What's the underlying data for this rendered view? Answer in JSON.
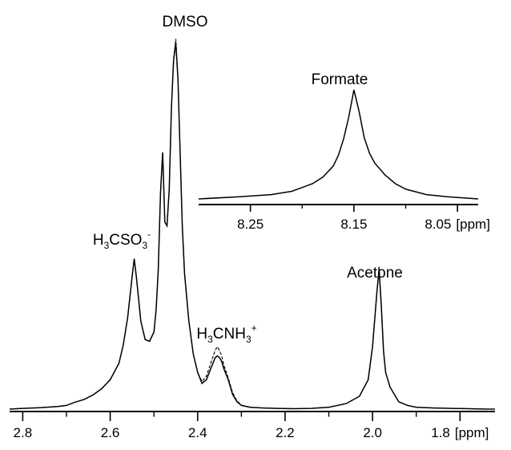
{
  "chart_data": [
    {
      "type": "line",
      "axis_unit": "[ppm]",
      "x_axis": {
        "reversed": true,
        "range": [
          2.83,
          1.72
        ],
        "ticks": [
          2.8,
          2.6,
          2.4,
          2.2,
          2.0,
          1.8
        ],
        "tick_labels": [
          "2.8",
          "2.6",
          "2.4",
          "2.2",
          "2.0",
          "1.8"
        ]
      },
      "grid": false,
      "series": [
        {
          "style": "solid",
          "x": [
            2.83,
            2.8,
            2.76,
            2.72,
            2.7,
            2.68,
            2.66,
            2.64,
            2.62,
            2.6,
            2.58,
            2.57,
            2.56,
            2.55,
            2.545,
            2.54,
            2.535,
            2.53,
            2.52,
            2.51,
            2.5,
            2.495,
            2.49,
            2.485,
            2.48,
            2.475,
            2.47,
            2.465,
            2.46,
            2.455,
            2.45,
            2.445,
            2.44,
            2.435,
            2.43,
            2.42,
            2.41,
            2.4,
            2.39,
            2.38,
            2.37,
            2.36,
            2.355,
            2.35,
            2.345,
            2.34,
            2.33,
            2.32,
            2.31,
            2.3,
            2.28,
            2.25,
            2.22,
            2.18,
            2.14,
            2.1,
            2.06,
            2.03,
            2.01,
            2.0,
            1.99,
            1.985,
            1.98,
            1.975,
            1.97,
            1.965,
            1.96,
            1.95,
            1.94,
            1.92,
            1.9,
            1.86,
            1.82,
            1.78,
            1.74,
            1.72
          ],
          "y": [
            0.0,
            0.002,
            0.004,
            0.007,
            0.01,
            0.019,
            0.026,
            0.038,
            0.055,
            0.08,
            0.125,
            0.175,
            0.25,
            0.36,
            0.41,
            0.36,
            0.3,
            0.24,
            0.19,
            0.185,
            0.21,
            0.27,
            0.38,
            0.59,
            0.7,
            0.51,
            0.5,
            0.6,
            0.82,
            0.95,
            1.0,
            0.9,
            0.7,
            0.5,
            0.37,
            0.24,
            0.15,
            0.1,
            0.07,
            0.08,
            0.11,
            0.14,
            0.145,
            0.14,
            0.13,
            0.11,
            0.08,
            0.04,
            0.02,
            0.01,
            0.005,
            0.003,
            0.002,
            0.001,
            0.002,
            0.005,
            0.015,
            0.035,
            0.08,
            0.17,
            0.32,
            0.38,
            0.28,
            0.16,
            0.1,
            0.08,
            0.06,
            0.04,
            0.02,
            0.01,
            0.005,
            0.003,
            0.002,
            0.001,
            0.0,
            0.0
          ]
        },
        {
          "style": "dashed",
          "x": [
            2.83,
            2.8,
            2.76,
            2.72,
            2.7,
            2.68,
            2.66,
            2.64,
            2.62,
            2.6,
            2.58,
            2.57,
            2.56,
            2.55,
            2.545,
            2.54,
            2.535,
            2.53,
            2.52,
            2.51,
            2.5,
            2.495,
            2.49,
            2.485,
            2.48,
            2.475,
            2.47,
            2.465,
            2.46,
            2.455,
            2.45,
            2.445,
            2.44,
            2.435,
            2.43,
            2.42,
            2.41,
            2.4,
            2.39,
            2.38,
            2.37,
            2.36,
            2.355,
            2.35,
            2.345,
            2.34,
            2.33,
            2.32,
            2.31,
            2.3,
            2.28,
            2.25,
            2.22,
            2.18,
            2.14,
            2.1,
            2.06,
            2.03,
            2.01,
            2.0,
            1.99,
            1.985,
            1.98,
            1.975,
            1.97,
            1.965,
            1.96,
            1.95,
            1.94,
            1.92,
            1.9,
            1.86,
            1.82,
            1.78,
            1.74,
            1.72
          ],
          "y": [
            0.0,
            0.002,
            0.004,
            0.007,
            0.01,
            0.019,
            0.026,
            0.038,
            0.055,
            0.08,
            0.125,
            0.175,
            0.25,
            0.36,
            0.41,
            0.36,
            0.3,
            0.24,
            0.19,
            0.185,
            0.21,
            0.27,
            0.38,
            0.59,
            0.7,
            0.51,
            0.5,
            0.6,
            0.82,
            0.955,
            1.01,
            0.905,
            0.7,
            0.5,
            0.37,
            0.24,
            0.15,
            0.1,
            0.075,
            0.09,
            0.125,
            0.16,
            0.17,
            0.16,
            0.145,
            0.12,
            0.085,
            0.045,
            0.022,
            0.011,
            0.005,
            0.003,
            0.002,
            0.001,
            0.002,
            0.005,
            0.015,
            0.035,
            0.08,
            0.17,
            0.32,
            0.39,
            0.285,
            0.16,
            0.1,
            0.08,
            0.06,
            0.04,
            0.02,
            0.01,
            0.005,
            0.003,
            0.002,
            0.001,
            0.0,
            0.0
          ]
        }
      ],
      "annotations": [
        {
          "text": "DMSO",
          "x": 2.45
        },
        {
          "text": "H3CSO3-",
          "base": "H",
          "sub1": "3",
          "mid": "CSO",
          "sub2": "3",
          "sup": "-",
          "x": 2.545
        },
        {
          "text": "H3CNH3+",
          "base": "H",
          "sub1": "3",
          "mid": "CNH",
          "sub2": "3",
          "sup": "+",
          "x": 2.355
        },
        {
          "text": "Acetone",
          "x": 1.985
        }
      ]
    },
    {
      "type": "line",
      "inset": true,
      "axis_unit": "[ppm]",
      "x_axis": {
        "reversed": true,
        "range": [
          8.3,
          8.03
        ],
        "ticks": [
          8.25,
          8.15,
          8.05
        ],
        "tick_labels": [
          "8.25",
          "8.15",
          "8.05"
        ]
      },
      "grid": false,
      "series": [
        {
          "style": "solid",
          "x": [
            8.3,
            8.26,
            8.23,
            8.21,
            8.19,
            8.18,
            8.17,
            8.165,
            8.16,
            8.155,
            8.15,
            8.145,
            8.14,
            8.135,
            8.13,
            8.12,
            8.11,
            8.1,
            8.08,
            8.06,
            8.03
          ],
          "y": [
            0.0,
            0.02,
            0.04,
            0.07,
            0.14,
            0.2,
            0.3,
            0.4,
            0.55,
            0.75,
            1.0,
            0.8,
            0.56,
            0.42,
            0.33,
            0.22,
            0.14,
            0.09,
            0.04,
            0.02,
            0.0
          ]
        }
      ],
      "annotations": [
        {
          "text": "Formate",
          "x": 8.15
        }
      ]
    }
  ]
}
